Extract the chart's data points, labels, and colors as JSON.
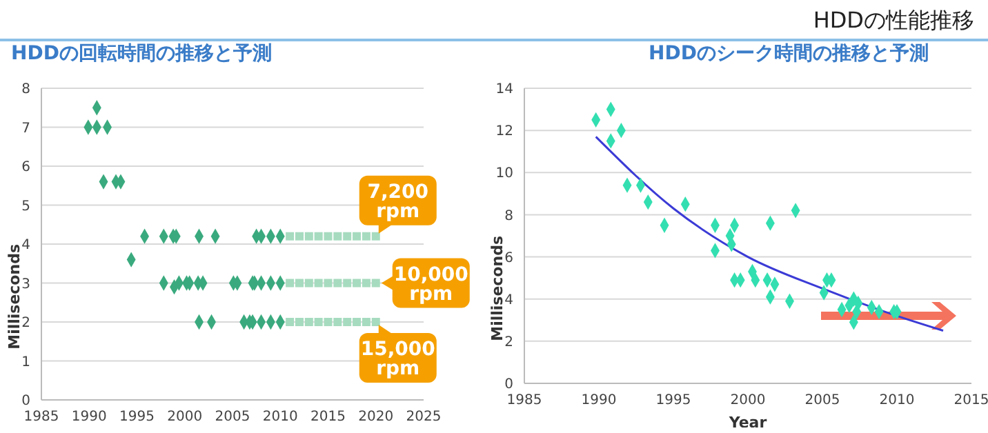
{
  "chart_data": [
    {
      "type": "scatter",
      "title": "HDDの回転時間の推移と予測",
      "ylabel": "Milliseconds",
      "annotations": [
        "HDDの性能推移",
        "7,200 rpm",
        "10,000 rpm",
        "15,000 rpm"
      ],
      "xlim": [
        1985,
        2025
      ],
      "xticks": [
        1985,
        1990,
        1995,
        2000,
        2005,
        2010,
        2015,
        2020,
        2025
      ],
      "ylim": [
        0,
        8
      ],
      "yticks": [
        0,
        1,
        2,
        3,
        4,
        5,
        6,
        7,
        8
      ],
      "grid": "y",
      "legend": false,
      "series": [
        {
          "color": "#3aaa7e",
          "marker": "diamond",
          "x": [
            1989.9,
            1990.8,
            1990.8,
            1991.9,
            1991.5,
            1992.8,
            1993.3,
            1994.4,
            1995.8,
            1997.8,
            1998.8,
            1999.1,
            2001.5,
            2003.2,
            2007.5,
            2008.0,
            2009.0,
            2010.0,
            1997.8,
            1998.9,
            1999.4,
            2000.2,
            2000.5,
            2001.4,
            2001.9,
            2005.1,
            2005.5,
            2007.1,
            2007.3,
            2008.0,
            2009.0,
            2010.0,
            2001.5,
            2002.8,
            2006.2,
            2006.8,
            2007.1,
            2008.0,
            2009.0,
            2010.0
          ],
          "values": [
            7.0,
            7.5,
            7.0,
            7.0,
            5.6,
            5.6,
            5.6,
            3.6,
            4.2,
            4.2,
            4.2,
            4.2,
            4.2,
            4.2,
            4.2,
            4.2,
            4.2,
            4.2,
            3.0,
            2.9,
            3.0,
            3.0,
            3.0,
            3.0,
            3.0,
            3.0,
            3.0,
            3.0,
            3.0,
            3.0,
            3.0,
            3.0,
            2.0,
            2.0,
            2.0,
            2.0,
            2.0,
            2.0,
            2.0,
            2.0
          ]
        },
        {
          "color": "#a6dbbf",
          "marker": "square",
          "x": [
            2011,
            2012,
            2013,
            2014,
            2015,
            2016,
            2017,
            2018,
            2019,
            2020,
            2011,
            2012,
            2013,
            2014,
            2015,
            2016,
            2017,
            2018,
            2019,
            2020,
            2011,
            2012,
            2013,
            2014,
            2015,
            2016,
            2017,
            2018,
            2019,
            2020
          ],
          "values": [
            4.2,
            4.2,
            4.2,
            4.2,
            4.2,
            4.2,
            4.2,
            4.2,
            4.2,
            4.2,
            3,
            3,
            3,
            3,
            3,
            3,
            3,
            3,
            3,
            3,
            2,
            2,
            2,
            2,
            2,
            2,
            2,
            2,
            2,
            2
          ]
        }
      ]
    },
    {
      "type": "scatter",
      "title": "HDDのシーク時間の推移と予測",
      "xlabel": "Year",
      "ylabel": "Milliseconds",
      "xlim": [
        1985,
        2015
      ],
      "xticks": [
        1985,
        1990,
        1995,
        2000,
        2005,
        2010,
        2015
      ],
      "ylim": [
        0,
        14
      ],
      "yticks": [
        0,
        2,
        4,
        6,
        8,
        10,
        12,
        14
      ],
      "grid": "y",
      "legend": false,
      "series": [
        {
          "color": "#33dfb0",
          "marker": "diamond",
          "x": [
            1989.8,
            1990.8,
            1990.8,
            1991.5,
            1991.9,
            1992.8,
            1993.3,
            1994.4,
            1995.8,
            1997.8,
            1997.8,
            1998.8,
            1998.9,
            1999.1,
            1999.1,
            1999.5,
            2000.3,
            2000.5,
            2001.3,
            2001.5,
            2001.5,
            2001.8,
            2002.8,
            2003.2,
            2005.1,
            2005.3,
            2005.6,
            2006.3,
            2006.8,
            2007.1,
            2007.1,
            2007.3,
            2007.4,
            2008.3,
            2008.8,
            2009.8,
            2010.0
          ],
          "values": [
            12.5,
            13.0,
            11.5,
            12.0,
            9.4,
            9.4,
            8.6,
            7.5,
            8.5,
            7.5,
            6.3,
            7.0,
            6.6,
            7.5,
            4.9,
            4.9,
            5.3,
            4.9,
            4.9,
            7.6,
            4.1,
            4.7,
            3.9,
            8.2,
            4.3,
            4.9,
            4.9,
            3.5,
            3.7,
            4.0,
            2.9,
            3.4,
            3.8,
            3.6,
            3.4,
            3.4,
            3.4
          ]
        },
        {
          "type": "line",
          "color": "#3b3bd6",
          "marker": "none",
          "x": [
            1989.8,
            1995,
            2000,
            2005,
            2010,
            2013.1
          ],
          "values": [
            11.7,
            8.3,
            6.0,
            4.5,
            3.2,
            2.5
          ]
        }
      ]
    }
  ]
}
